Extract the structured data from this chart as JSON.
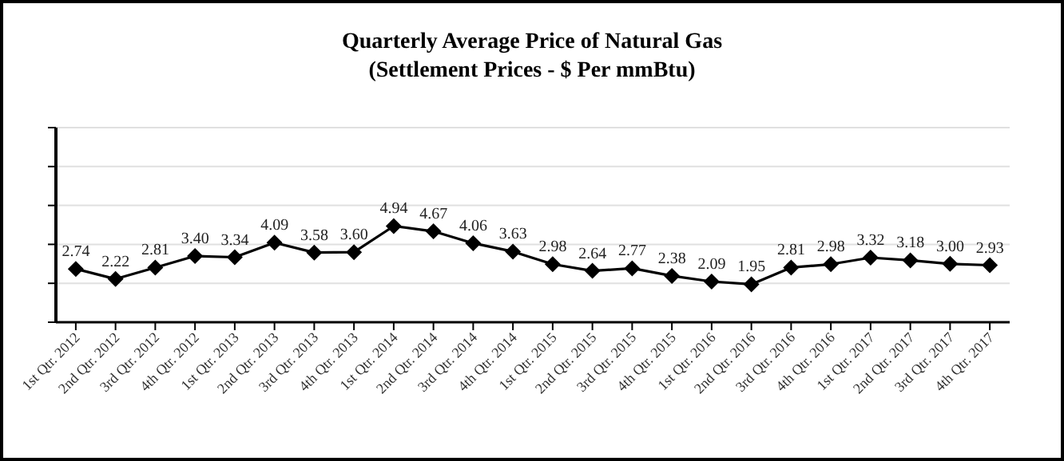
{
  "chart_data": {
    "type": "line",
    "title": "Quarterly Average Price of Natural Gas",
    "subtitle": "(Settlement Prices - $ Per mmBtu)",
    "categories": [
      "1st Qtr. 2012",
      "2nd Qtr. 2012",
      "3rd Qtr. 2012",
      "4th Qtr. 2012",
      "1st Qtr. 2013",
      "2nd Qtr. 2013",
      "3rd Qtr. 2013",
      "4th Qtr. 2013",
      "1st Qtr. 2014",
      "2nd Qtr. 2014",
      "3rd Qtr. 2014",
      "4th Qtr. 2014",
      "1st Qtr. 2015",
      "2nd Qtr. 2015",
      "3rd Qtr. 2015",
      "4th Qtr. 2015",
      "1st Qtr. 2016",
      "2nd Qtr. 2016",
      "3rd Qtr. 2016",
      "4th Qtr. 2016",
      "1st Qtr. 2017",
      "2nd Qtr. 2017",
      "3rd Qtr. 2017",
      "4th Qtr. 2017"
    ],
    "series": [
      {
        "color": "#000000",
        "values": [
          2.74,
          2.22,
          2.81,
          3.4,
          3.34,
          4.09,
          3.58,
          3.6,
          4.94,
          4.67,
          4.06,
          3.63,
          2.98,
          2.64,
          2.77,
          2.38,
          2.09,
          1.95,
          2.81,
          2.98,
          3.32,
          3.18,
          3.0,
          2.93
        ],
        "value_labels": [
          "2.74",
          "2.22",
          "2.81",
          "3.40",
          "3.34",
          "4.09",
          "3.58",
          "3.60",
          "4.94",
          "4.67",
          "4.06",
          "3.63",
          "2.98",
          "2.64",
          "2.77",
          "2.38",
          "2.09",
          "1.95",
          "2.81",
          "2.98",
          "3.32",
          "3.18",
          "3.00",
          "2.93"
        ]
      }
    ],
    "ylim": [
      0,
      10
    ],
    "yticks": [
      {
        "value": 0,
        "label": null
      },
      {
        "value": 2,
        "label": null
      },
      {
        "value": 4,
        "label": null
      },
      {
        "value": 6,
        "label": null
      },
      {
        "value": 8,
        "label": null
      },
      {
        "value": 10,
        "label": null
      }
    ],
    "grid": "y",
    "marker": "diamond",
    "line_style": "solid",
    "tick_labels": "x"
  }
}
